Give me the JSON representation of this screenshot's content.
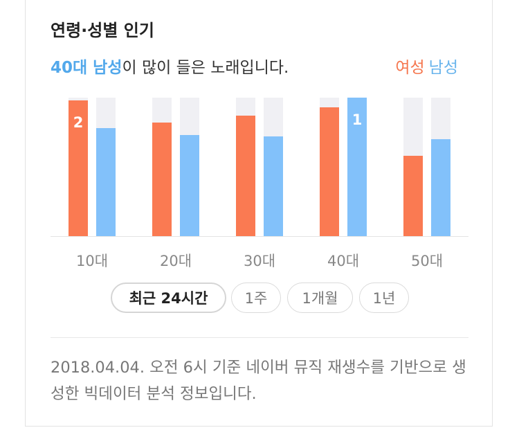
{
  "header": {
    "title": "연령·성별 인기",
    "highlight": "40대 남성",
    "subtitle_rest": "이 많이 들은 노래입니다."
  },
  "legend": {
    "female": "여성",
    "male": "남성"
  },
  "colors": {
    "female": "#fa7a52",
    "male": "#82c1fa",
    "track": "#f0f0f4",
    "highlight_text": "#52a8eb"
  },
  "chart_data": {
    "type": "bar",
    "categories": [
      "10대",
      "20대",
      "30대",
      "40대",
      "50대"
    ],
    "series": [
      {
        "name": "여성",
        "values": [
          98,
          82,
          87,
          93,
          58
        ]
      },
      {
        "name": "남성",
        "values": [
          78,
          73,
          72,
          100,
          70
        ]
      }
    ],
    "rank_labels": [
      {
        "category": "10대",
        "series": "여성",
        "label": "2"
      },
      {
        "category": "40대",
        "series": "남성",
        "label": "1"
      }
    ],
    "ylim": [
      0,
      100
    ],
    "xlabel": "",
    "ylabel": "",
    "legend_position": "top-right",
    "grid": false
  },
  "periods": [
    {
      "label": "최근 24시간",
      "active": true
    },
    {
      "label": "1주",
      "active": false
    },
    {
      "label": "1개월",
      "active": false
    },
    {
      "label": "1년",
      "active": false
    }
  ],
  "footnote": "2018.04.04. 오전 6시 기준 네이버 뮤직 재생수를 기반으로 생성한 빅데이터 분석 정보입니다."
}
